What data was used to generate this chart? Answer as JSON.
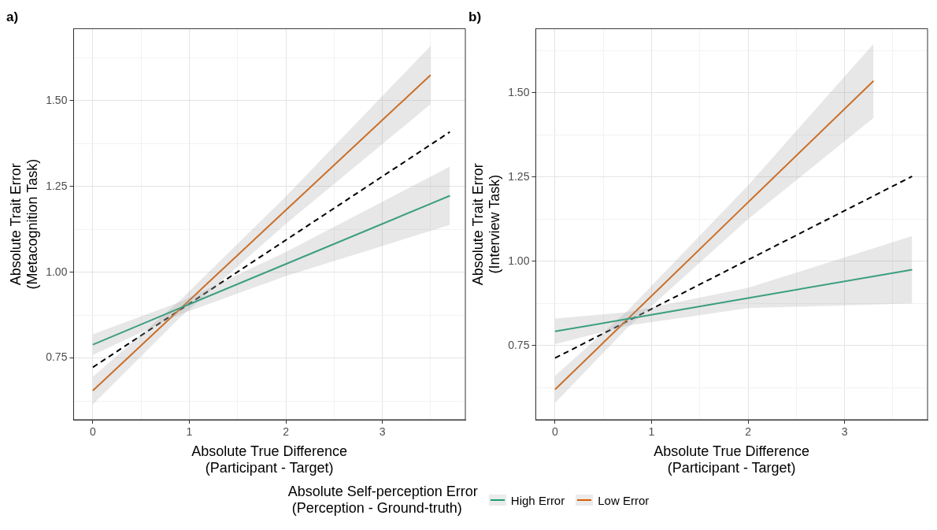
{
  "chart_data": [
    {
      "type": "line",
      "title": "a)",
      "xlabel": "Absolute True Difference\n(Participant - Target)",
      "ylabel": "Absolute Trait Error\n(Metacognition Task)",
      "legend": "bottom",
      "legend_title": "Absolute Self-perception Error\n (Perception - Ground-truth)",
      "grid": true,
      "xlim": [
        -0.2,
        3.86
      ],
      "ylim": [
        0.57,
        1.71
      ],
      "xticks": [
        0,
        {
          "value": 0.5,
          "label": null
        },
        1,
        {
          "value": 1.5,
          "label": null
        },
        2,
        {
          "value": 2.5,
          "label": null
        },
        3,
        {
          "value": 3.5,
          "label": null
        }
      ],
      "yticks": [
        {
          "value": 0.625,
          "label": null
        },
        {
          "value": 0.75,
          "label": "0.75"
        },
        {
          "value": 0.875,
          "label": null
        },
        {
          "value": 1,
          "label": "1.00"
        },
        {
          "value": 1.125,
          "label": null
        },
        {
          "value": 1.25,
          "label": "1.25"
        },
        {
          "value": 1.375,
          "label": null
        },
        {
          "value": 1.5,
          "label": "1.50"
        },
        {
          "value": 1.625,
          "label": null
        }
      ],
      "series": [
        {
          "name": "High Error",
          "color": "#1b9e77",
          "x": [
            0,
            0.9,
            2,
            3.7
          ],
          "values": [
            0.789,
            0.895,
            1.024,
            1.223
          ],
          "lower": [
            0.759,
            0.877,
            0.989,
            1.138
          ],
          "upper": [
            0.819,
            0.913,
            1.059,
            1.308
          ],
          "line_style": "solid"
        },
        {
          "name": "Low Error",
          "color": "#d95f02",
          "x": [
            0,
            0.9,
            2,
            3.5
          ],
          "values": [
            0.655,
            0.892,
            1.181,
            1.575
          ],
          "lower": [
            0.615,
            0.867,
            1.141,
            1.49
          ],
          "upper": [
            0.695,
            0.917,
            1.221,
            1.66
          ],
          "line_style": "solid"
        },
        {
          "color": "#000000",
          "x": [
            0,
            3.7
          ],
          "values": [
            0.723,
            1.409
          ],
          "line_style": "dashed"
        }
      ]
    },
    {
      "type": "line",
      "title": "b)",
      "xlabel": "Absolute True Difference\n(Participant - Target)",
      "ylabel": "Absolute Trait Error\n(Interview Task)",
      "grid": true,
      "xlim": [
        -0.2,
        3.86
      ],
      "ylim": [
        0.53,
        1.69
      ],
      "xticks": [
        0,
        {
          "value": 0.5,
          "label": null
        },
        1,
        {
          "value": 1.5,
          "label": null
        },
        2,
        {
          "value": 2.5,
          "label": null
        },
        3,
        {
          "value": 3.5,
          "label": null
        }
      ],
      "yticks": [
        {
          "value": 0.625,
          "label": null
        },
        {
          "value": 0.75,
          "label": "0.75"
        },
        {
          "value": 0.875,
          "label": null
        },
        {
          "value": 1,
          "label": "1.00"
        },
        {
          "value": 1.125,
          "label": null
        },
        {
          "value": 1.25,
          "label": "1.25"
        },
        {
          "value": 1.375,
          "label": null
        },
        {
          "value": 1.5,
          "label": "1.50"
        },
        {
          "value": 1.625,
          "label": null
        }
      ],
      "series": [
        {
          "color": "#1b9e77",
          "x": [
            0,
            0.75,
            2,
            3.7
          ],
          "values": [
            0.792,
            0.829,
            0.891,
            0.975
          ],
          "lower": [
            0.754,
            0.809,
            0.861,
            0.875
          ],
          "upper": [
            0.83,
            0.849,
            0.921,
            1.075
          ],
          "line_style": "solid"
        },
        {
          "color": "#d95f02",
          "x": [
            0,
            0.75,
            2,
            3.3
          ],
          "values": [
            0.62,
            0.828,
            1.175,
            1.535
          ],
          "lower": [
            0.58,
            0.803,
            1.125,
            1.425
          ],
          "upper": [
            0.66,
            0.853,
            1.225,
            1.645
          ],
          "line_style": "solid"
        },
        {
          "color": "#000000",
          "x": [
            0,
            3.7
          ],
          "values": [
            0.713,
            1.252
          ],
          "line_style": "dashed"
        }
      ]
    }
  ]
}
